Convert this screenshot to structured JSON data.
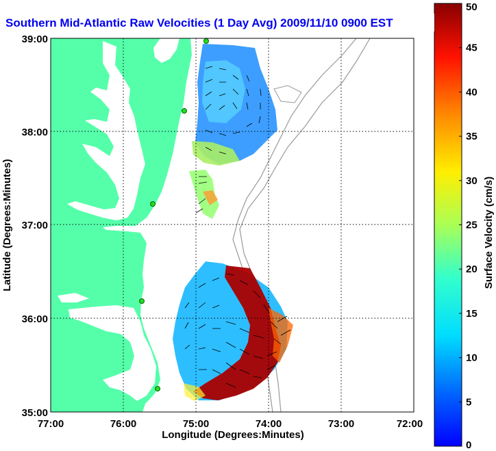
{
  "title": "Southern Mid-Atlantic Raw Velocities (1 Day Avg) 2009/11/10 0900 EST",
  "map": {
    "xlabel": "Longitude (Degrees:Minutes)",
    "ylabel": "Latitude (Degrees:Minutes)",
    "x_ticks": [
      "77:00",
      "76:00",
      "75:00",
      "74:00",
      "73:00",
      "72:00"
    ],
    "y_ticks": [
      "39:00",
      "38:00",
      "37:00",
      "36:00",
      "35:00"
    ],
    "land_color": "#55ffaa",
    "grid": "dotted"
  },
  "colorbar": {
    "label": "Surface Velocity (cm/s)",
    "ticks": [
      "0",
      "5",
      "10",
      "15",
      "20",
      "25",
      "30",
      "35",
      "40",
      "45",
      "50"
    ],
    "min": 0,
    "max": 50,
    "colormap": "jet"
  }
}
